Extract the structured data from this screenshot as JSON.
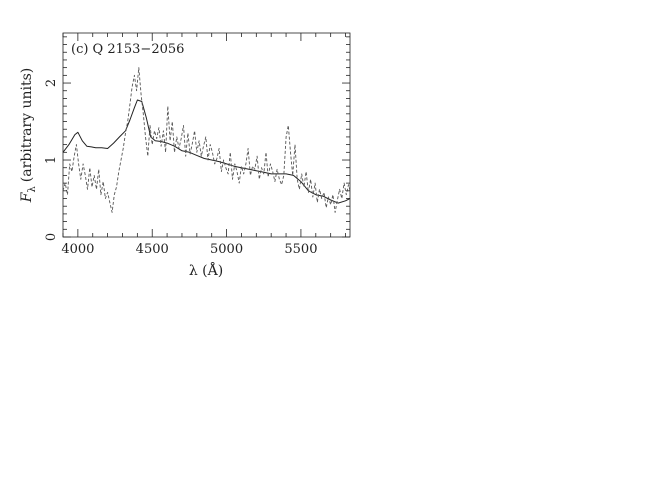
{
  "chart_data": {
    "type": "line",
    "panel_label": "(c) Q 2153−2056",
    "xlabel": "λ (Å)",
    "ylabel": "(arbitrary units)",
    "ylabel_symbol": "F",
    "ylabel_subscript": "λ",
    "xlim": [
      3900,
      5830
    ],
    "ylim": [
      0,
      2.65
    ],
    "x_ticks": [
      4000,
      4500,
      5000,
      5500
    ],
    "x_tick_labels": [
      "4000",
      "4500",
      "5000",
      "5500"
    ],
    "y_ticks": [
      0,
      1,
      2
    ],
    "y_tick_labels": [
      "0",
      "1",
      "2"
    ],
    "grid": false,
    "series": [
      {
        "style": "solid",
        "color": "#222222",
        "x": [
          3900,
          3940,
          3980,
          4000,
          4030,
          4060,
          4090,
          4120,
          4160,
          4200,
          4240,
          4280,
          4320,
          4350,
          4380,
          4400,
          4430,
          4460,
          4490,
          4520,
          4560,
          4600,
          4650,
          4700,
          4750,
          4800,
          4850,
          4900,
          4950,
          5000,
          5050,
          5100,
          5150,
          5200,
          5250,
          5300,
          5350,
          5400,
          5450,
          5500,
          5550,
          5600,
          5650,
          5700,
          5750,
          5800,
          5830
        ],
        "y": [
          1.1,
          1.2,
          1.33,
          1.36,
          1.25,
          1.18,
          1.17,
          1.16,
          1.16,
          1.15,
          1.22,
          1.3,
          1.38,
          1.52,
          1.68,
          1.78,
          1.76,
          1.55,
          1.3,
          1.25,
          1.24,
          1.22,
          1.18,
          1.12,
          1.1,
          1.06,
          1.02,
          1.0,
          0.98,
          0.95,
          0.92,
          0.9,
          0.88,
          0.86,
          0.84,
          0.82,
          0.82,
          0.82,
          0.8,
          0.72,
          0.6,
          0.55,
          0.53,
          0.48,
          0.44,
          0.47,
          0.5
        ]
      },
      {
        "style": "dashed",
        "color": "#555555",
        "x": [
          3900,
          3915,
          3930,
          3945,
          3960,
          3975,
          3990,
          4005,
          4020,
          4035,
          4050,
          4065,
          4080,
          4095,
          4110,
          4125,
          4140,
          4155,
          4170,
          4185,
          4200,
          4215,
          4230,
          4245,
          4260,
          4275,
          4290,
          4305,
          4320,
          4335,
          4350,
          4365,
          4380,
          4395,
          4410,
          4425,
          4440,
          4455,
          4470,
          4485,
          4500,
          4515,
          4530,
          4545,
          4560,
          4575,
          4590,
          4605,
          4620,
          4635,
          4650,
          4665,
          4680,
          4695,
          4710,
          4725,
          4740,
          4755,
          4770,
          4785,
          4800,
          4815,
          4830,
          4845,
          4860,
          4875,
          4890,
          4905,
          4920,
          4935,
          4950,
          4965,
          4980,
          4995,
          5010,
          5025,
          5040,
          5055,
          5070,
          5085,
          5100,
          5115,
          5130,
          5145,
          5160,
          5175,
          5190,
          5205,
          5220,
          5235,
          5250,
          5265,
          5280,
          5295,
          5310,
          5325,
          5340,
          5355,
          5370,
          5385,
          5400,
          5415,
          5430,
          5445,
          5460,
          5475,
          5490,
          5505,
          5520,
          5535,
          5550,
          5565,
          5580,
          5595,
          5610,
          5625,
          5640,
          5655,
          5670,
          5685,
          5700,
          5715,
          5730,
          5745,
          5760,
          5775,
          5790,
          5805,
          5820,
          5830
        ],
        "y": [
          0.6,
          0.7,
          0.55,
          0.95,
          0.85,
          1.05,
          1.2,
          0.95,
          0.75,
          0.95,
          0.8,
          0.62,
          0.9,
          0.65,
          0.8,
          0.62,
          0.88,
          0.55,
          0.72,
          0.5,
          0.58,
          0.45,
          0.32,
          0.55,
          0.65,
          0.85,
          1.0,
          1.15,
          1.35,
          1.5,
          1.72,
          1.95,
          2.1,
          1.9,
          2.2,
          1.85,
          1.6,
          1.3,
          1.05,
          1.45,
          1.2,
          1.38,
          1.28,
          1.42,
          1.18,
          1.38,
          1.1,
          1.7,
          1.25,
          1.5,
          1.1,
          1.3,
          1.15,
          1.28,
          1.45,
          1.05,
          1.35,
          1.08,
          1.22,
          1.38,
          1.1,
          1.25,
          1.05,
          1.18,
          1.3,
          1.0,
          1.2,
          1.1,
          0.95,
          1.02,
          1.15,
          0.85,
          1.0,
          0.9,
          0.82,
          1.1,
          0.75,
          0.95,
          0.85,
          0.7,
          0.92,
          0.82,
          0.95,
          1.15,
          0.8,
          0.92,
          0.88,
          1.05,
          0.75,
          0.9,
          0.82,
          1.1,
          0.78,
          0.95,
          0.85,
          0.72,
          0.88,
          0.75,
          0.68,
          0.8,
          1.3,
          1.45,
          1.1,
          0.8,
          1.2,
          0.75,
          0.62,
          0.82,
          0.65,
          0.85,
          0.58,
          0.75,
          0.52,
          0.7,
          0.45,
          0.62,
          0.5,
          0.58,
          0.38,
          0.52,
          0.42,
          0.55,
          0.32,
          0.48,
          0.62,
          0.5,
          0.7,
          0.55,
          0.68,
          0.6
        ]
      }
    ]
  }
}
